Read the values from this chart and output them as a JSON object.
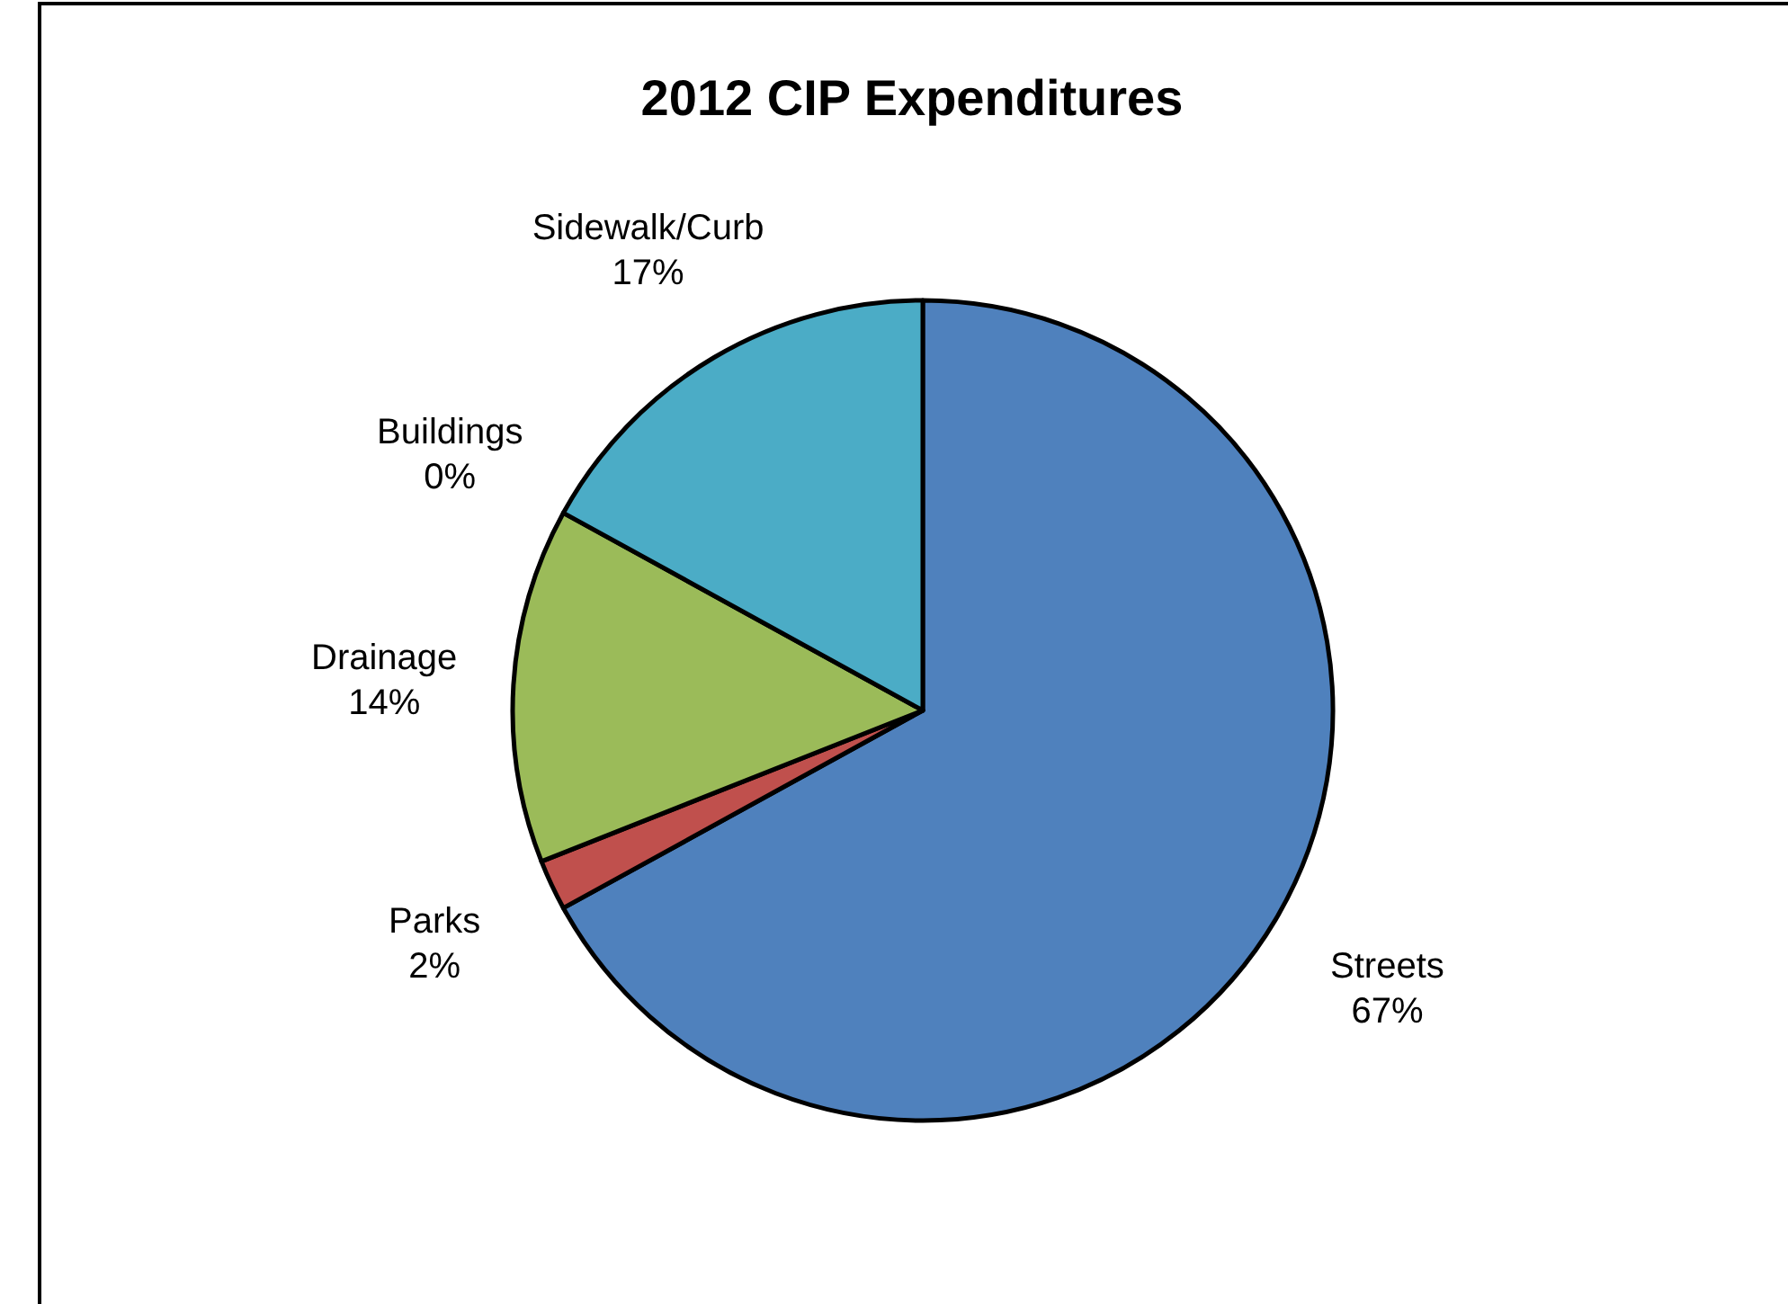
{
  "chart_data": {
    "type": "pie",
    "title": "2012 CIP Expenditures",
    "categories": [
      "Streets",
      "Parks",
      "Drainage",
      "Buildings",
      "Sidewalk/Curb"
    ],
    "values": [
      67,
      2,
      14,
      0,
      17
    ],
    "colors": [
      "#4f81bd",
      "#c0504d",
      "#9bbb59",
      "#8064a2",
      "#4bacc6"
    ],
    "value_labels": [
      "67%",
      "2%",
      "14%",
      "0%",
      "17%"
    ],
    "legend": false
  }
}
